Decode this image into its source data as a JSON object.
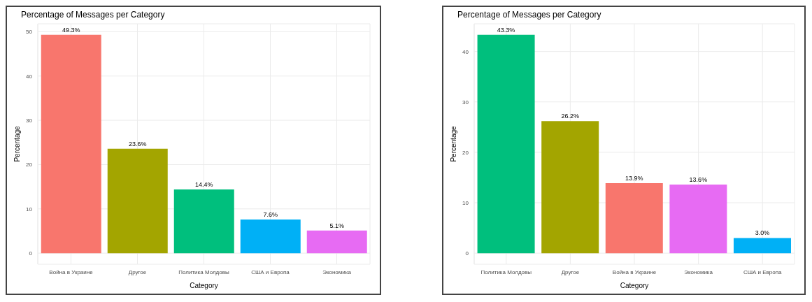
{
  "chart_data": [
    {
      "type": "bar",
      "title": "Percentage of Messages per Category",
      "xlabel": "Category",
      "ylabel": "Percentage",
      "categories": [
        "Война в Украине",
        "Другое",
        "Политика Молдовы",
        "США и Европа",
        "Экономика"
      ],
      "values": [
        49.3,
        23.6,
        14.4,
        7.6,
        5.1
      ],
      "colors": [
        "#f8766d",
        "#a3a500",
        "#00bf7d",
        "#00b0f6",
        "#e76bf3"
      ],
      "value_labels": [
        "49.3%",
        "23.6%",
        "14.4%",
        "7.6%",
        "5.1%"
      ],
      "ylim": [
        -2.5,
        51.8
      ],
      "yticks": [
        0,
        10,
        20,
        30,
        40,
        50
      ],
      "grid": true,
      "legend": false
    },
    {
      "type": "bar",
      "title": "Percentage of Messages per Category",
      "xlabel": "Category",
      "ylabel": "Percentage",
      "categories": [
        "Политика Молдовы",
        "Другое",
        "Война в Украине",
        "Экономика",
        "США и Европа"
      ],
      "values": [
        43.3,
        26.2,
        13.9,
        13.6,
        3.0
      ],
      "colors": [
        "#00bf7d",
        "#a3a500",
        "#f8766d",
        "#e76bf3",
        "#00b0f6"
      ],
      "value_labels": [
        "43.3%",
        "26.2%",
        "13.9%",
        "13.6%",
        "3.0%"
      ],
      "ylim": [
        -2.2,
        45.5
      ],
      "yticks": [
        0,
        10,
        20,
        30,
        40
      ],
      "grid": true,
      "legend": false
    }
  ]
}
